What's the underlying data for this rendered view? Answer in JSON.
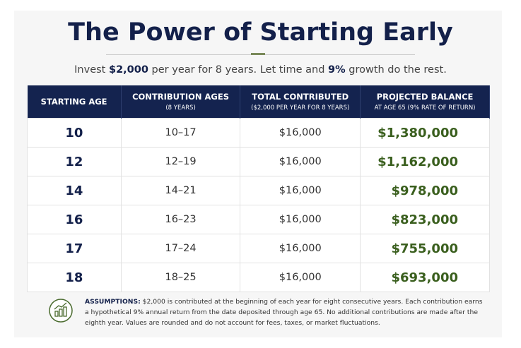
{
  "title": "The Power of Starting Early",
  "subtitle": [
    "Invest ",
    "$2,000",
    " per year for 8 years. Let time and ",
    "9%",
    " growth do the rest."
  ],
  "table": {
    "header": [
      {
        "title": "STARTING AGE"
      },
      {
        "title": "CONTRIBUTION AGES",
        "subtitle": "(8 YEARS)"
      },
      {
        "title": "TOTAL CONTRIBUTED",
        "subtitle": "($2,000 PER YEAR FOR 8 YEARS)"
      },
      {
        "title": "PROJECTED BALANCE",
        "subtitle": "AT AGE 65 (9% RATE OF RETURN)"
      }
    ],
    "rows": [
      [
        "10",
        "10–17",
        "$16,000",
        "$1,380,000"
      ],
      [
        "12",
        "12–19",
        "$16,000",
        "$1,162,000"
      ],
      [
        "14",
        "14–21",
        "$16,000",
        "$978,000"
      ],
      [
        "16",
        "16–23",
        "$16,000",
        "$823,000"
      ],
      [
        "17",
        "17–24",
        "$16,000",
        "$755,000"
      ],
      [
        "18",
        "18–25",
        "$16,000",
        "$693,000"
      ]
    ]
  },
  "footnote": {
    "label": "ASSUMPTIONS:",
    "text": " $2,000 is contributed at the beginning of each year for eight consecutive years. Each contribution earns a hypothetical 9% annual return from the date deposited through age 65. No additional contributions are made after the eighth year. Values are rounded and do not account for fees, taxes, or market fluctuations."
  }
}
